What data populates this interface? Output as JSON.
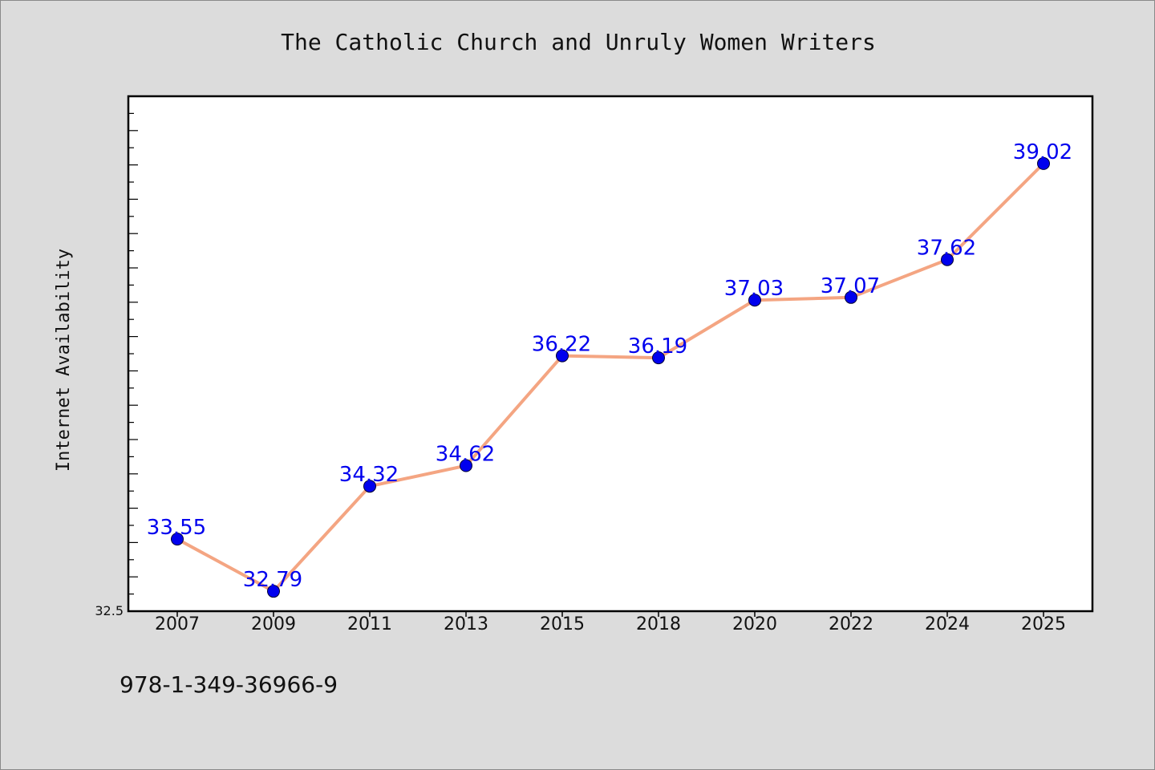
{
  "chart_data": {
    "type": "line",
    "title": "The Catholic Church and Unruly Women Writers",
    "xlabel": "",
    "ylabel": "Internet Availability",
    "categories": [
      "2007",
      "2009",
      "2011",
      "2013",
      "2015",
      "2018",
      "2020",
      "2022",
      "2024",
      "2025"
    ],
    "series": [
      {
        "values": [
          33.55,
          32.79,
          34.32,
          34.62,
          36.22,
          36.19,
          37.03,
          37.07,
          37.62,
          39.02
        ],
        "data_labels": [
          "33.55",
          "32.79",
          "34.32",
          "34.62",
          "36.22",
          "36.19",
          "37.03",
          "37.07",
          "37.62",
          "39.02"
        ]
      }
    ],
    "ylim": [
      32.5,
      40.0
    ],
    "y_tick_labels": [
      "32.5"
    ],
    "grid": false,
    "legend": "none"
  },
  "footer": {
    "isbn": "978-1-349-36966-9"
  },
  "colors": {
    "background": "#dcdcdc",
    "plot_background": "#ffffff",
    "line": "#f4a582",
    "marker": "#0000ee",
    "data_label": "#0000ee",
    "axis": "#000000"
  }
}
